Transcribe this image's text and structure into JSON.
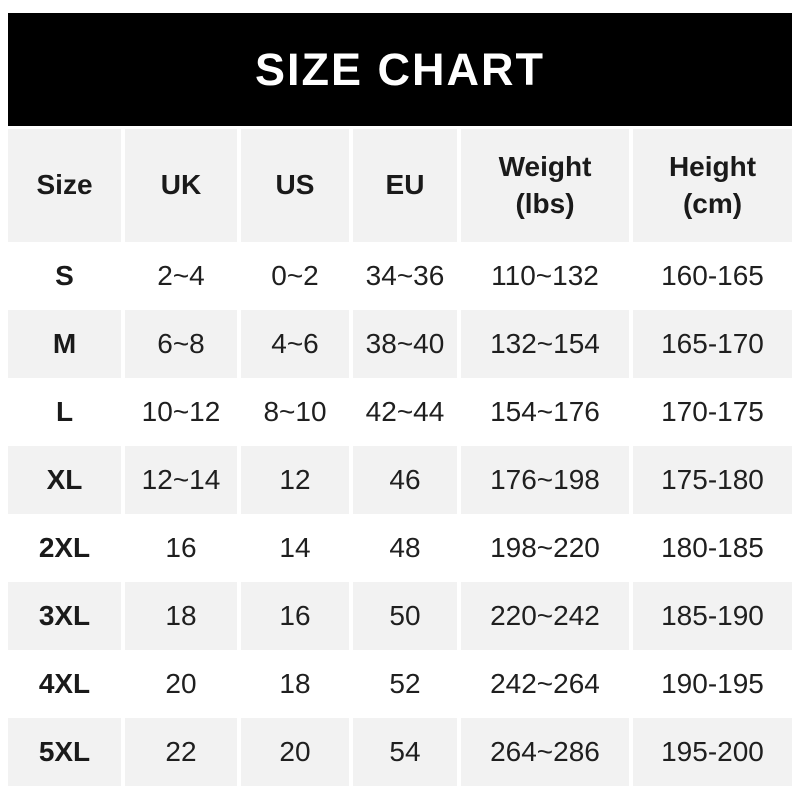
{
  "banner": {
    "title": "SIZE CHART"
  },
  "colors": {
    "banner_bg": "#000000",
    "banner_text": "#ffffff",
    "alt_row_bg": "#f2f2f2",
    "row_bg": "#ffffff",
    "text": "#1f1f1f"
  },
  "table": {
    "headers": {
      "size": "Size",
      "uk": "UK",
      "us": "US",
      "eu": "EU",
      "weight_line1": "Weight",
      "weight_line2": "(lbs)",
      "height_line1": "Height",
      "height_line2": "(cm)"
    },
    "rows": [
      {
        "size": "S",
        "uk": "2~4",
        "us": "0~2",
        "eu": "34~36",
        "weight": "110~132",
        "height": "160-165"
      },
      {
        "size": "M",
        "uk": "6~8",
        "us": "4~6",
        "eu": "38~40",
        "weight": "132~154",
        "height": "165-170"
      },
      {
        "size": "L",
        "uk": "10~12",
        "us": "8~10",
        "eu": "42~44",
        "weight": "154~176",
        "height": "170-175"
      },
      {
        "size": "XL",
        "uk": "12~14",
        "us": "12",
        "eu": "46",
        "weight": "176~198",
        "height": "175-180"
      },
      {
        "size": "2XL",
        "uk": "16",
        "us": "14",
        "eu": "48",
        "weight": "198~220",
        "height": "180-185"
      },
      {
        "size": "3XL",
        "uk": "18",
        "us": "16",
        "eu": "50",
        "weight": "220~242",
        "height": "185-190"
      },
      {
        "size": "4XL",
        "uk": "20",
        "us": "18",
        "eu": "52",
        "weight": "242~264",
        "height": "190-195"
      },
      {
        "size": "5XL",
        "uk": "22",
        "us": "20",
        "eu": "54",
        "weight": "264~286",
        "height": "195-200"
      }
    ]
  },
  "chart_data": {
    "type": "table",
    "title": "SIZE CHART",
    "columns": [
      "Size",
      "UK",
      "US",
      "EU",
      "Weight (lbs)",
      "Height (cm)"
    ],
    "rows": [
      [
        "S",
        "2~4",
        "0~2",
        "34~36",
        "110~132",
        "160-165"
      ],
      [
        "M",
        "6~8",
        "4~6",
        "38~40",
        "132~154",
        "165-170"
      ],
      [
        "L",
        "10~12",
        "8~10",
        "42~44",
        "154~176",
        "170-175"
      ],
      [
        "XL",
        "12~14",
        "12",
        "46",
        "176~198",
        "175-180"
      ],
      [
        "2XL",
        "16",
        "14",
        "48",
        "198~220",
        "180-185"
      ],
      [
        "3XL",
        "18",
        "16",
        "50",
        "220~242",
        "185-190"
      ],
      [
        "4XL",
        "20",
        "18",
        "52",
        "242~264",
        "190-195"
      ],
      [
        "5XL",
        "22",
        "20",
        "54",
        "264~286",
        "195-200"
      ]
    ],
    "layout": {
      "alternating_row_shading": true,
      "header_shaded": true,
      "column_gutters": "white 4px"
    }
  }
}
